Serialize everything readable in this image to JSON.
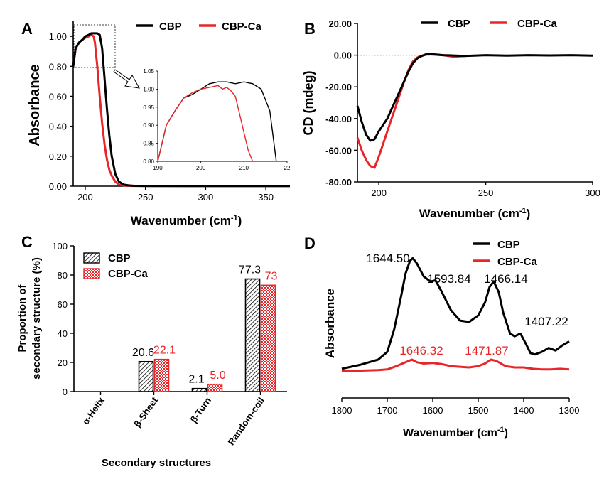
{
  "chart_data": [
    {
      "panel": "A",
      "type": "line",
      "xlabel": "Wavenumber (cm",
      "xlabel_sup": "-1",
      "xlabel_close": ")",
      "ylabel": "Absorbance",
      "xlim": [
        190,
        370
      ],
      "ylim": [
        0,
        1.1
      ],
      "xticks": [
        "200",
        "250",
        "300",
        "350"
      ],
      "yticks": [
        "0.00",
        "0.20",
        "0.40",
        "0.60",
        "0.80",
        "1.00"
      ],
      "legend": "top-right",
      "series": [
        {
          "name": "CBP",
          "color": "#000000",
          "x": [
            190,
            192,
            195,
            198,
            200,
            203,
            205,
            208,
            210,
            212,
            214,
            216,
            218,
            220,
            222,
            225,
            228,
            232,
            236,
            240,
            250,
            300,
            370
          ],
          "y": [
            0.8,
            0.92,
            0.96,
            0.98,
            1.0,
            1.01,
            1.02,
            1.02,
            1.02,
            1.01,
            0.92,
            0.72,
            0.52,
            0.34,
            0.2,
            0.08,
            0.03,
            0.01,
            0.005,
            0.003,
            0.002,
            0.001,
            0.001
          ]
        },
        {
          "name": "CBP-Ca",
          "color": "#e8262a",
          "x": [
            190,
            192,
            195,
            198,
            200,
            203,
            205,
            207,
            208,
            210,
            212,
            214,
            216,
            218,
            220,
            222,
            225,
            228,
            232,
            236,
            240,
            250,
            300,
            370
          ],
          "y": [
            0.8,
            0.92,
            0.96,
            0.98,
            0.99,
            1.0,
            1.01,
            1.0,
            0.96,
            0.8,
            0.6,
            0.42,
            0.28,
            0.18,
            0.11,
            0.07,
            0.03,
            0.01,
            0.005,
            0.003,
            0.002,
            0.001,
            0.001,
            0.001
          ]
        }
      ],
      "inset": {
        "xlim": [
          190,
          220
        ],
        "ylim": [
          0.8,
          1.05
        ],
        "xticks": [
          "190",
          "200",
          "210",
          "22"
        ],
        "yticks": [
          "0.80",
          "0.85",
          "0.90",
          "0.95",
          "1.00",
          "1.05"
        ]
      }
    },
    {
      "panel": "B",
      "type": "line",
      "xlabel": "Wavenumber (cm",
      "xlabel_sup": "-1",
      "xlabel_close": ")",
      "ylabel": "CD (mdeg)",
      "xlim": [
        190,
        300
      ],
      "ylim": [
        -80,
        20
      ],
      "xticks": [
        "200",
        "250",
        "300"
      ],
      "yticks": [
        "20.00",
        "0.00",
        "-20.00",
        "-40.00",
        "-60.00",
        "-80.00"
      ],
      "legend": "top-right",
      "series": [
        {
          "name": "CBP",
          "color": "#000000",
          "x": [
            190,
            192,
            194,
            196,
            198,
            200,
            202,
            204,
            206,
            208,
            210,
            212,
            214,
            216,
            218,
            220,
            222,
            224,
            226,
            230,
            240,
            250,
            260,
            270,
            280,
            290,
            300
          ],
          "y": [
            -32,
            -42,
            -50,
            -54,
            -53,
            -48,
            -44,
            -40,
            -34,
            -28,
            -22,
            -16,
            -10,
            -5,
            -2,
            -0.5,
            0.5,
            0.8,
            0.5,
            0,
            -0.5,
            0,
            -0.3,
            0,
            -0.2,
            0,
            -0.3
          ]
        },
        {
          "name": "CBP-Ca",
          "color": "#e8262a",
          "x": [
            190,
            192,
            194,
            196,
            198,
            200,
            202,
            204,
            206,
            208,
            210,
            212,
            214,
            216,
            218,
            220,
            222,
            224,
            226,
            230,
            235,
            240
          ],
          "y": [
            -52,
            -60,
            -66,
            -70,
            -71,
            -64,
            -56,
            -48,
            -40,
            -32,
            -24,
            -16,
            -9,
            -4,
            -1.5,
            -0.5,
            0.3,
            0.6,
            0.3,
            0,
            -1,
            -0.5
          ]
        }
      ],
      "zero_line": "dotted"
    },
    {
      "panel": "C",
      "type": "bar",
      "xlabel": "Secondary structures",
      "ylabel": "Proportion of secondary structure (%)",
      "ylabel_lines": [
        "Proportion of",
        "secondary structure (%)"
      ],
      "ylim": [
        0,
        100
      ],
      "yticks": [
        "0",
        "20",
        "40",
        "60",
        "80",
        "100"
      ],
      "categories": [
        "α-Helix",
        "β-Sheet",
        "β-Turn",
        "Random-coil"
      ],
      "legend": "top-left",
      "series": [
        {
          "name": "CBP",
          "color": "#000000",
          "pattern": "hatch",
          "values": [
            0,
            20.6,
            2.1,
            77.3
          ],
          "labels": [
            "",
            "20.6",
            "2.1",
            "77.3"
          ]
        },
        {
          "name": "CBP-Ca",
          "color": "#e8262a",
          "pattern": "checker",
          "values": [
            0,
            22.1,
            5.0,
            73
          ],
          "labels": [
            "",
            "22.1",
            "5.0",
            "73"
          ]
        }
      ]
    },
    {
      "panel": "D",
      "type": "line",
      "xlabel": "Wavenumber (cm",
      "xlabel_sup": "-1",
      "xlabel_close": ")",
      "ylabel": "Absorbance",
      "xlim": [
        1800,
        1300
      ],
      "xticks": [
        "1800",
        "1700",
        "1600",
        "1500",
        "1400",
        "1300"
      ],
      "legend": "top-right",
      "series": [
        {
          "name": "CBP",
          "color": "#000000",
          "x": [
            1800,
            1760,
            1720,
            1700,
            1685,
            1670,
            1660,
            1650,
            1644,
            1635,
            1620,
            1605,
            1594,
            1580,
            1560,
            1540,
            1520,
            1500,
            1485,
            1475,
            1466,
            1455,
            1445,
            1430,
            1420,
            1407,
            1395,
            1385,
            1375,
            1360,
            1345,
            1330,
            1315,
            1300
          ],
          "y": [
            0.05,
            0.08,
            0.12,
            0.18,
            0.35,
            0.6,
            0.78,
            0.88,
            0.9,
            0.86,
            0.76,
            0.72,
            0.73,
            0.64,
            0.5,
            0.42,
            0.41,
            0.46,
            0.56,
            0.68,
            0.72,
            0.64,
            0.48,
            0.32,
            0.3,
            0.32,
            0.24,
            0.17,
            0.16,
            0.18,
            0.21,
            0.19,
            0.23,
            0.26
          ]
        },
        {
          "name": "CBP-Ca",
          "color": "#e8262a",
          "x": [
            1800,
            1760,
            1720,
            1700,
            1680,
            1660,
            1646,
            1635,
            1620,
            1600,
            1580,
            1560,
            1540,
            1520,
            1500,
            1485,
            1472,
            1460,
            1450,
            1440,
            1420,
            1400,
            1380,
            1360,
            1340,
            1320,
            1300
          ],
          "y": [
            0.03,
            0.035,
            0.04,
            0.045,
            0.07,
            0.1,
            0.12,
            0.1,
            0.09,
            0.095,
            0.085,
            0.07,
            0.065,
            0.06,
            0.07,
            0.09,
            0.12,
            0.11,
            0.09,
            0.07,
            0.06,
            0.06,
            0.05,
            0.045,
            0.045,
            0.05,
            0.045
          ]
        }
      ],
      "peak_labels": [
        {
          "text": "1644.50",
          "series": "CBP",
          "x": 1644
        },
        {
          "text": "1593.84",
          "series": "CBP",
          "x": 1594
        },
        {
          "text": "1466.14",
          "series": "CBP",
          "x": 1466
        },
        {
          "text": "1407.22",
          "series": "CBP",
          "x": 1407
        },
        {
          "text": "1646.32",
          "series": "CBP-Ca",
          "x": 1646
        },
        {
          "text": "1471.87",
          "series": "CBP-Ca",
          "x": 1472
        }
      ]
    }
  ]
}
